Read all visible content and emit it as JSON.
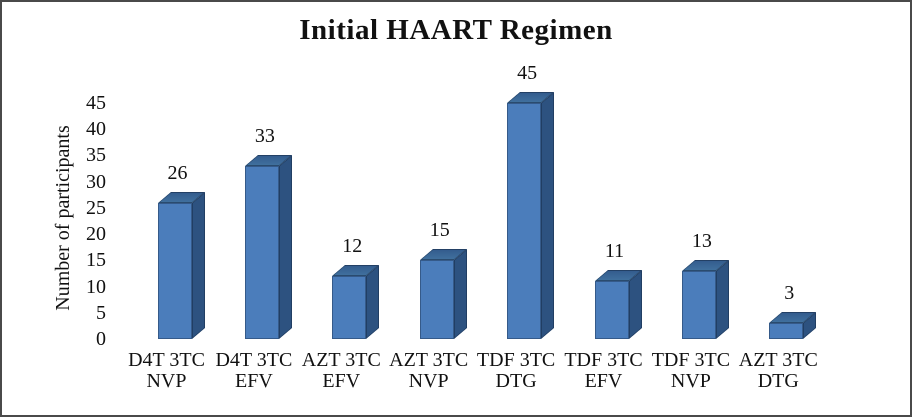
{
  "window": {
    "background": "#ffffff",
    "border_color": "#4a4a4a"
  },
  "chart_data": {
    "type": "bar",
    "style": "3d-column",
    "title": "Initial HAART Regimen",
    "ylabel": "Number of participants",
    "xlabel": "",
    "categories": [
      "D4T 3TC NVP",
      "D4T 3TC EFV",
      "AZT 3TC EFV",
      "AZT 3TC NVP",
      "TDF 3TC DTG",
      "TDF 3TC EFV",
      "TDF 3TC NVP",
      "AZT 3TC DTG"
    ],
    "category_lines": [
      [
        "D4T 3TC",
        "NVP"
      ],
      [
        "D4T 3TC",
        "EFV"
      ],
      [
        "AZT 3TC",
        "EFV"
      ],
      [
        "AZT 3TC",
        "NVP"
      ],
      [
        "TDF 3TC",
        "DTG"
      ],
      [
        "TDF 3TC",
        "EFV"
      ],
      [
        "TDF 3TC",
        "NVP"
      ],
      [
        "AZT 3TC",
        "DTG"
      ]
    ],
    "values": [
      26,
      33,
      12,
      15,
      45,
      11,
      13,
      3
    ],
    "data_labels": [
      "26",
      "33",
      "12",
      "15",
      "45",
      "11",
      "13",
      "3"
    ],
    "yticks": [
      0,
      5,
      10,
      15,
      20,
      25,
      30,
      35,
      40,
      45
    ],
    "ylim": [
      0,
      45
    ],
    "legend": "none",
    "gridlines": false,
    "axis_lines": false,
    "colors": {
      "bar_front": "#4b7dbb",
      "bar_top_near": "#41729f",
      "bar_top_far": "#325a8c",
      "bar_side": "#2d5280",
      "edge": "#203e63",
      "text": "#111111"
    }
  }
}
